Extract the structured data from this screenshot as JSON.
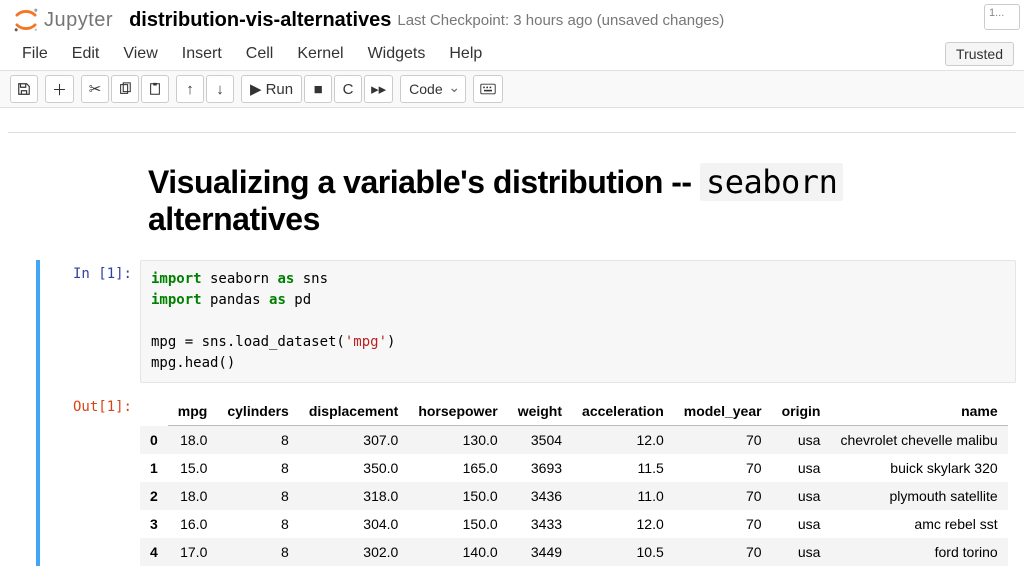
{
  "header": {
    "logo_text": "Jupyter",
    "notebook_name": "distribution-vis-alternatives",
    "checkpoint_text": "Last Checkpoint: 3 hours ago  (unsaved changes)",
    "top_right_placeholder": "1..."
  },
  "menu": {
    "items": [
      "File",
      "Edit",
      "View",
      "Insert",
      "Cell",
      "Kernel",
      "Widgets",
      "Help"
    ],
    "trusted_label": "Trusted"
  },
  "toolbar": {
    "run_label": "Run",
    "cell_type_selected": "Code"
  },
  "markdown": {
    "title_pre": "Visualizing a variable's distribution -- ",
    "title_code": "seaborn",
    "title_post": " alternatives"
  },
  "cell1": {
    "in_prompt": "In [1]:",
    "out_prompt": "Out[1]:",
    "code_lines": {
      "l1a": "import",
      "l1b": " seaborn ",
      "l1c": "as",
      "l1d": " sns",
      "l2a": "import",
      "l2b": " pandas ",
      "l2c": "as",
      "l2d": " pd",
      "l4a": "mpg = sns.load_dataset(",
      "l4b": "'mpg'",
      "l4c": ")",
      "l5": "mpg.head()"
    },
    "table": {
      "columns": [
        "mpg",
        "cylinders",
        "displacement",
        "horsepower",
        "weight",
        "acceleration",
        "model_year",
        "origin",
        "name"
      ],
      "index": [
        "0",
        "1",
        "2",
        "3",
        "4"
      ],
      "rows": [
        [
          "18.0",
          "8",
          "307.0",
          "130.0",
          "3504",
          "12.0",
          "70",
          "usa",
          "chevrolet chevelle malibu"
        ],
        [
          "15.0",
          "8",
          "350.0",
          "165.0",
          "3693",
          "11.5",
          "70",
          "usa",
          "buick skylark 320"
        ],
        [
          "18.0",
          "8",
          "318.0",
          "150.0",
          "3436",
          "11.0",
          "70",
          "usa",
          "plymouth satellite"
        ],
        [
          "16.0",
          "8",
          "304.0",
          "150.0",
          "3433",
          "12.0",
          "70",
          "usa",
          "amc rebel sst"
        ],
        [
          "17.0",
          "8",
          "302.0",
          "140.0",
          "3449",
          "10.5",
          "70",
          "usa",
          "ford torino"
        ]
      ]
    }
  },
  "colors": {
    "accent_blue": "#42A5F5",
    "in_prompt": "#303F9F",
    "out_prompt": "#D84315",
    "code_bg": "#f7f7f7",
    "row_stripe": "#f4f4f4",
    "keyword": "#008000",
    "string": "#BA2121",
    "logo_orange": "#F37726",
    "border_gray": "#e0e0e0"
  }
}
